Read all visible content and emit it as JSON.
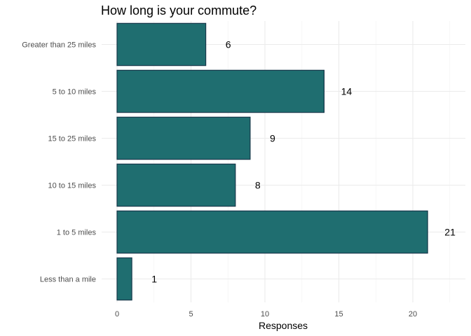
{
  "chart_data": {
    "type": "bar",
    "orientation": "horizontal",
    "title": "How long is your commute?",
    "xlabel": "Responses",
    "ylabel": "",
    "categories": [
      "Less than a mile",
      "1 to 5 miles",
      "10 to 15 miles",
      "15 to 25 miles",
      "5 to 10 miles",
      "Greater than 25 miles"
    ],
    "values": [
      1,
      21,
      8,
      9,
      14,
      6
    ],
    "data_labels": [
      "1",
      "21",
      "8",
      "9",
      "14",
      "6"
    ],
    "xlim": [
      0,
      22.5
    ],
    "x_ticks": [
      0,
      5,
      10,
      15,
      20
    ],
    "x_tick_labels": [
      "0",
      "5",
      "10",
      "15",
      "20"
    ],
    "grid": true,
    "legend": "none",
    "bar_color": "#1f6e70",
    "bar_edge_color": "#17384a"
  }
}
